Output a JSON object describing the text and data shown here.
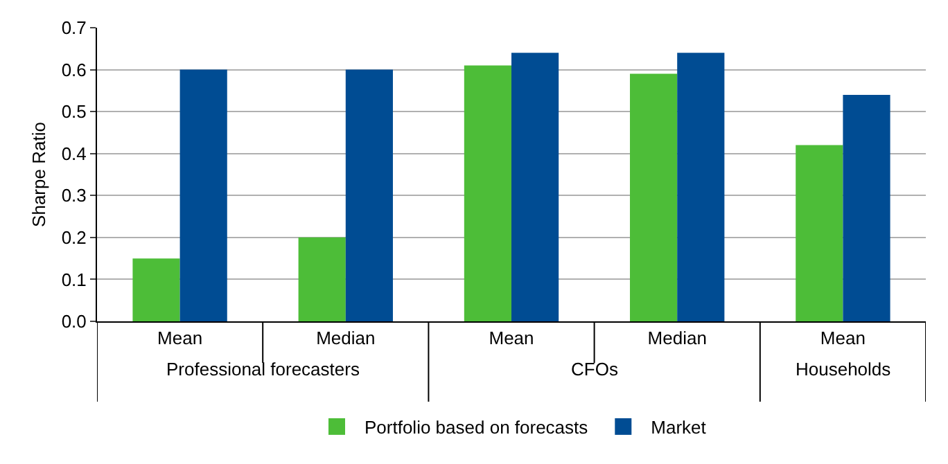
{
  "chart_data": {
    "type": "bar",
    "ylabel": "Sharpe Ratio",
    "categories": [
      "Mean",
      "Median",
      "Mean",
      "Median",
      "Mean"
    ],
    "series": [
      {
        "name": "Portfolio based on forecasts",
        "color": "#4dbd38",
        "values": [
          0.15,
          0.2,
          0.61,
          0.59,
          0.42
        ]
      },
      {
        "name": "Market",
        "color": "#004c93",
        "values": [
          0.6,
          0.6,
          0.64,
          0.64,
          0.54
        ]
      }
    ],
    "annotations": [
      "Professional forecasters",
      "CFOs",
      "Households"
    ],
    "ylim": [
      0,
      0.7
    ],
    "yticks": [
      {
        "value": 0,
        "label": "0.0"
      },
      0.1,
      0.2,
      0.3,
      0.4,
      0.5,
      0.6,
      0.7
    ],
    "grid": "y",
    "legend": "bottom"
  }
}
